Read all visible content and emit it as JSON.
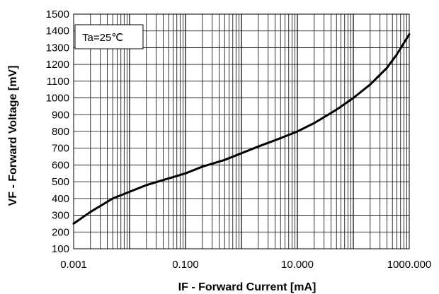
{
  "chart_data": {
    "type": "line",
    "title": "",
    "xlabel": "IF - Forward Current [mA]",
    "ylabel": "VF - Forward Voltage [mV]",
    "x_scale": "log",
    "xlim": [
      0.001,
      1000
    ],
    "ylim": [
      100,
      1500
    ],
    "grid": true,
    "x_ticks": [
      {
        "value": 0.001,
        "label": "0.001"
      },
      {
        "value": 0.1,
        "label": "0.100"
      },
      {
        "value": 10,
        "label": "10.000"
      },
      {
        "value": 1000,
        "label": "1000.000"
      }
    ],
    "y_ticks": [
      100,
      200,
      300,
      400,
      500,
      600,
      700,
      800,
      900,
      1000,
      1100,
      1200,
      1300,
      1400,
      1500
    ],
    "annotation": {
      "text": "Ta=25℃"
    },
    "series": [
      {
        "x": [
          0.001,
          0.002,
          0.005,
          0.01,
          0.02,
          0.05,
          0.1,
          0.2,
          0.5,
          1,
          2,
          5,
          10,
          20,
          50,
          100,
          200,
          400,
          600,
          1000
        ],
        "y": [
          250,
          320,
          400,
          440,
          480,
          520,
          550,
          590,
          630,
          670,
          710,
          760,
          800,
          850,
          930,
          1000,
          1080,
          1180,
          1260,
          1380
        ]
      }
    ],
    "colors": {
      "line": "#000000",
      "grid": "#000000",
      "background": "#ffffff"
    }
  }
}
